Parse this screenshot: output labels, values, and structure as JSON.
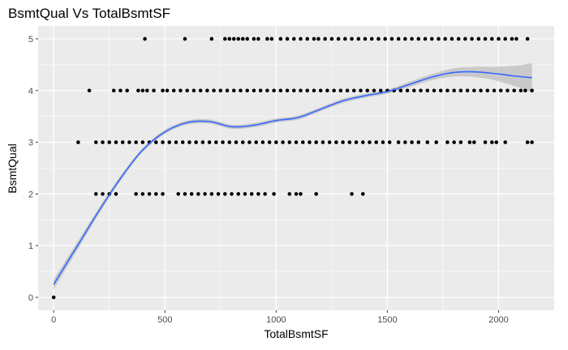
{
  "chart_data": {
    "type": "scatter",
    "title": "BsmtQual Vs TotalBsmtSF",
    "xlabel": "TotalBsmtSF",
    "ylabel": "BsmtQual",
    "xlim": [
      -70,
      2250
    ],
    "ylim": [
      -0.25,
      5.25
    ],
    "x_ticks": [
      0,
      500,
      1000,
      1500,
      2000
    ],
    "y_ticks": [
      0,
      1,
      2,
      3,
      4,
      5
    ],
    "grid": true,
    "panel_background": "#ebebeb",
    "grid_color": "#ffffff",
    "point_color": "#000000",
    "smooth_color": "#3366ff",
    "ribbon_color": "#bdbdbd",
    "series": [
      {
        "values": [
          {
            "x": 0,
            "y": 0
          },
          {
            "x": 410,
            "y": 5
          },
          {
            "x": 590,
            "y": 5
          },
          {
            "x": 710,
            "y": 5
          },
          {
            "x": 770,
            "y": 5
          },
          {
            "x": 790,
            "y": 5
          },
          {
            "x": 810,
            "y": 5
          },
          {
            "x": 830,
            "y": 5
          },
          {
            "x": 850,
            "y": 5
          },
          {
            "x": 870,
            "y": 5
          },
          {
            "x": 900,
            "y": 5
          },
          {
            "x": 920,
            "y": 5
          },
          {
            "x": 960,
            "y": 5
          },
          {
            "x": 980,
            "y": 5
          },
          {
            "x": 1020,
            "y": 5
          },
          {
            "x": 1050,
            "y": 5
          },
          {
            "x": 1080,
            "y": 5
          },
          {
            "x": 1110,
            "y": 5
          },
          {
            "x": 1140,
            "y": 5
          },
          {
            "x": 1170,
            "y": 5
          },
          {
            "x": 1190,
            "y": 5
          },
          {
            "x": 1220,
            "y": 5
          },
          {
            "x": 1250,
            "y": 5
          },
          {
            "x": 1280,
            "y": 5
          },
          {
            "x": 1310,
            "y": 5
          },
          {
            "x": 1340,
            "y": 5
          },
          {
            "x": 1370,
            "y": 5
          },
          {
            "x": 1400,
            "y": 5
          },
          {
            "x": 1430,
            "y": 5
          },
          {
            "x": 1460,
            "y": 5
          },
          {
            "x": 1490,
            "y": 5
          },
          {
            "x": 1520,
            "y": 5
          },
          {
            "x": 1550,
            "y": 5
          },
          {
            "x": 1580,
            "y": 5
          },
          {
            "x": 1610,
            "y": 5
          },
          {
            "x": 1640,
            "y": 5
          },
          {
            "x": 1670,
            "y": 5
          },
          {
            "x": 1700,
            "y": 5
          },
          {
            "x": 1730,
            "y": 5
          },
          {
            "x": 1760,
            "y": 5
          },
          {
            "x": 1790,
            "y": 5
          },
          {
            "x": 1820,
            "y": 5
          },
          {
            "x": 1850,
            "y": 5
          },
          {
            "x": 1880,
            "y": 5
          },
          {
            "x": 1910,
            "y": 5
          },
          {
            "x": 1940,
            "y": 5
          },
          {
            "x": 1970,
            "y": 5
          },
          {
            "x": 2000,
            "y": 5
          },
          {
            "x": 2030,
            "y": 5
          },
          {
            "x": 2060,
            "y": 5
          },
          {
            "x": 2080,
            "y": 5
          },
          {
            "x": 2130,
            "y": 5
          },
          {
            "x": 160,
            "y": 4
          },
          {
            "x": 270,
            "y": 4
          },
          {
            "x": 300,
            "y": 4
          },
          {
            "x": 330,
            "y": 4
          },
          {
            "x": 380,
            "y": 4
          },
          {
            "x": 400,
            "y": 4
          },
          {
            "x": 420,
            "y": 4
          },
          {
            "x": 450,
            "y": 4
          },
          {
            "x": 490,
            "y": 4
          },
          {
            "x": 510,
            "y": 4
          },
          {
            "x": 540,
            "y": 4
          },
          {
            "x": 570,
            "y": 4
          },
          {
            "x": 600,
            "y": 4
          },
          {
            "x": 630,
            "y": 4
          },
          {
            "x": 660,
            "y": 4
          },
          {
            "x": 690,
            "y": 4
          },
          {
            "x": 720,
            "y": 4
          },
          {
            "x": 750,
            "y": 4
          },
          {
            "x": 780,
            "y": 4
          },
          {
            "x": 810,
            "y": 4
          },
          {
            "x": 840,
            "y": 4
          },
          {
            "x": 870,
            "y": 4
          },
          {
            "x": 900,
            "y": 4
          },
          {
            "x": 930,
            "y": 4
          },
          {
            "x": 960,
            "y": 4
          },
          {
            "x": 990,
            "y": 4
          },
          {
            "x": 1020,
            "y": 4
          },
          {
            "x": 1050,
            "y": 4
          },
          {
            "x": 1080,
            "y": 4
          },
          {
            "x": 1110,
            "y": 4
          },
          {
            "x": 1140,
            "y": 4
          },
          {
            "x": 1170,
            "y": 4
          },
          {
            "x": 1200,
            "y": 4
          },
          {
            "x": 1230,
            "y": 4
          },
          {
            "x": 1260,
            "y": 4
          },
          {
            "x": 1290,
            "y": 4
          },
          {
            "x": 1320,
            "y": 4
          },
          {
            "x": 1350,
            "y": 4
          },
          {
            "x": 1380,
            "y": 4
          },
          {
            "x": 1410,
            "y": 4
          },
          {
            "x": 1440,
            "y": 4
          },
          {
            "x": 1470,
            "y": 4
          },
          {
            "x": 1500,
            "y": 4
          },
          {
            "x": 1530,
            "y": 4
          },
          {
            "x": 1560,
            "y": 4
          },
          {
            "x": 1590,
            "y": 4
          },
          {
            "x": 1620,
            "y": 4
          },
          {
            "x": 1650,
            "y": 4
          },
          {
            "x": 1680,
            "y": 4
          },
          {
            "x": 1710,
            "y": 4
          },
          {
            "x": 1740,
            "y": 4
          },
          {
            "x": 1770,
            "y": 4
          },
          {
            "x": 1800,
            "y": 4
          },
          {
            "x": 1830,
            "y": 4
          },
          {
            "x": 1860,
            "y": 4
          },
          {
            "x": 1890,
            "y": 4
          },
          {
            "x": 1920,
            "y": 4
          },
          {
            "x": 1950,
            "y": 4
          },
          {
            "x": 1980,
            "y": 4
          },
          {
            "x": 2010,
            "y": 4
          },
          {
            "x": 2040,
            "y": 4
          },
          {
            "x": 2070,
            "y": 4
          },
          {
            "x": 2100,
            "y": 4
          },
          {
            "x": 2120,
            "y": 4
          },
          {
            "x": 2150,
            "y": 4
          },
          {
            "x": 110,
            "y": 3
          },
          {
            "x": 190,
            "y": 3
          },
          {
            "x": 220,
            "y": 3
          },
          {
            "x": 250,
            "y": 3
          },
          {
            "x": 280,
            "y": 3
          },
          {
            "x": 310,
            "y": 3
          },
          {
            "x": 340,
            "y": 3
          },
          {
            "x": 370,
            "y": 3
          },
          {
            "x": 400,
            "y": 3
          },
          {
            "x": 430,
            "y": 3
          },
          {
            "x": 460,
            "y": 3
          },
          {
            "x": 490,
            "y": 3
          },
          {
            "x": 520,
            "y": 3
          },
          {
            "x": 550,
            "y": 3
          },
          {
            "x": 580,
            "y": 3
          },
          {
            "x": 610,
            "y": 3
          },
          {
            "x": 640,
            "y": 3
          },
          {
            "x": 670,
            "y": 3
          },
          {
            "x": 700,
            "y": 3
          },
          {
            "x": 730,
            "y": 3
          },
          {
            "x": 760,
            "y": 3
          },
          {
            "x": 790,
            "y": 3
          },
          {
            "x": 820,
            "y": 3
          },
          {
            "x": 850,
            "y": 3
          },
          {
            "x": 880,
            "y": 3
          },
          {
            "x": 910,
            "y": 3
          },
          {
            "x": 940,
            "y": 3
          },
          {
            "x": 970,
            "y": 3
          },
          {
            "x": 1000,
            "y": 3
          },
          {
            "x": 1030,
            "y": 3
          },
          {
            "x": 1060,
            "y": 3
          },
          {
            "x": 1090,
            "y": 3
          },
          {
            "x": 1120,
            "y": 3
          },
          {
            "x": 1150,
            "y": 3
          },
          {
            "x": 1180,
            "y": 3
          },
          {
            "x": 1210,
            "y": 3
          },
          {
            "x": 1240,
            "y": 3
          },
          {
            "x": 1270,
            "y": 3
          },
          {
            "x": 1300,
            "y": 3
          },
          {
            "x": 1330,
            "y": 3
          },
          {
            "x": 1360,
            "y": 3
          },
          {
            "x": 1390,
            "y": 3
          },
          {
            "x": 1420,
            "y": 3
          },
          {
            "x": 1450,
            "y": 3
          },
          {
            "x": 1480,
            "y": 3
          },
          {
            "x": 1510,
            "y": 3
          },
          {
            "x": 1550,
            "y": 3
          },
          {
            "x": 1580,
            "y": 3
          },
          {
            "x": 1610,
            "y": 3
          },
          {
            "x": 1640,
            "y": 3
          },
          {
            "x": 1680,
            "y": 3
          },
          {
            "x": 1720,
            "y": 3
          },
          {
            "x": 1770,
            "y": 3
          },
          {
            "x": 1800,
            "y": 3
          },
          {
            "x": 1830,
            "y": 3
          },
          {
            "x": 1870,
            "y": 3
          },
          {
            "x": 1890,
            "y": 3
          },
          {
            "x": 1940,
            "y": 3
          },
          {
            "x": 1970,
            "y": 3
          },
          {
            "x": 1990,
            "y": 3
          },
          {
            "x": 2030,
            "y": 3
          },
          {
            "x": 2130,
            "y": 3
          },
          {
            "x": 2150,
            "y": 3
          },
          {
            "x": 190,
            "y": 2
          },
          {
            "x": 220,
            "y": 2
          },
          {
            "x": 250,
            "y": 2
          },
          {
            "x": 280,
            "y": 2
          },
          {
            "x": 370,
            "y": 2
          },
          {
            "x": 400,
            "y": 2
          },
          {
            "x": 430,
            "y": 2
          },
          {
            "x": 460,
            "y": 2
          },
          {
            "x": 490,
            "y": 2
          },
          {
            "x": 560,
            "y": 2
          },
          {
            "x": 590,
            "y": 2
          },
          {
            "x": 620,
            "y": 2
          },
          {
            "x": 650,
            "y": 2
          },
          {
            "x": 680,
            "y": 2
          },
          {
            "x": 710,
            "y": 2
          },
          {
            "x": 740,
            "y": 2
          },
          {
            "x": 770,
            "y": 2
          },
          {
            "x": 800,
            "y": 2
          },
          {
            "x": 830,
            "y": 2
          },
          {
            "x": 860,
            "y": 2
          },
          {
            "x": 890,
            "y": 2
          },
          {
            "x": 920,
            "y": 2
          },
          {
            "x": 950,
            "y": 2
          },
          {
            "x": 990,
            "y": 2
          },
          {
            "x": 1060,
            "y": 2
          },
          {
            "x": 1090,
            "y": 2
          },
          {
            "x": 1110,
            "y": 2
          },
          {
            "x": 1180,
            "y": 2
          },
          {
            "x": 1340,
            "y": 2
          },
          {
            "x": 1390,
            "y": 2
          }
        ]
      }
    ],
    "smooth": {
      "x": [
        0,
        100,
        200,
        300,
        400,
        500,
        600,
        700,
        800,
        900,
        1000,
        1100,
        1200,
        1300,
        1400,
        1500,
        1600,
        1700,
        1800,
        1900,
        2000,
        2100,
        2150
      ],
      "y": [
        0.25,
        0.95,
        1.65,
        2.3,
        2.85,
        3.2,
        3.38,
        3.4,
        3.3,
        3.33,
        3.42,
        3.48,
        3.64,
        3.8,
        3.9,
        3.98,
        4.12,
        4.26,
        4.35,
        4.36,
        4.32,
        4.27,
        4.25
      ],
      "se": [
        0.1,
        0.08,
        0.06,
        0.05,
        0.04,
        0.04,
        0.04,
        0.04,
        0.04,
        0.04,
        0.04,
        0.04,
        0.04,
        0.04,
        0.04,
        0.04,
        0.05,
        0.06,
        0.08,
        0.1,
        0.14,
        0.22,
        0.28
      ]
    }
  }
}
